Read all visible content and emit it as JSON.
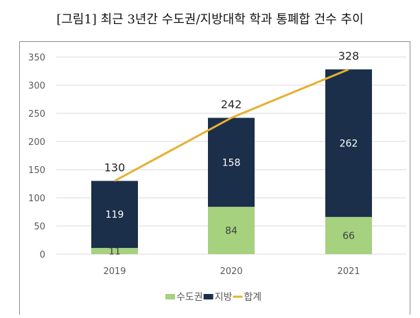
{
  "chart_data": {
    "type": "bar",
    "title": "[그림1] 최근 3년간 수도권/지방대학 학과 통폐합 건수 추이",
    "categories": [
      "2019",
      "2020",
      "2021"
    ],
    "series": [
      {
        "name": "수도권",
        "type": "bar",
        "stacked": true,
        "color": "#a6d17f",
        "values": [
          11,
          84,
          66
        ]
      },
      {
        "name": "지방",
        "type": "bar",
        "stacked": true,
        "color": "#1b2f4b",
        "values": [
          119,
          158,
          262
        ]
      },
      {
        "name": "합계",
        "type": "line",
        "color": "#e6b032",
        "values": [
          130,
          242,
          328
        ]
      }
    ],
    "ylim": [
      0,
      350
    ],
    "yticks": [
      0,
      50,
      100,
      150,
      200,
      250,
      300,
      350
    ],
    "grid": true,
    "legend": "bottom"
  }
}
